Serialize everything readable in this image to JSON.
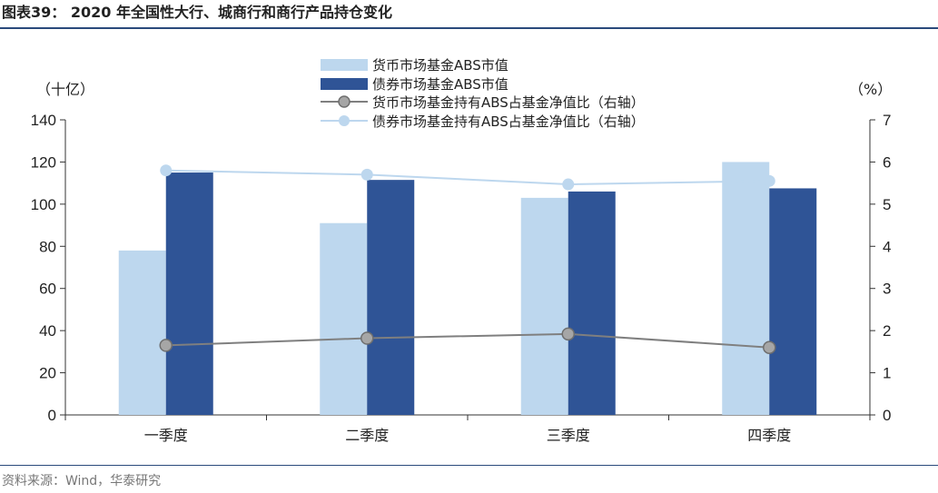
{
  "figure_title": "图表39： 2020 年全国性大行、城商行和商行产品持仓变化",
  "source": "资料来源：Wind，华泰研究",
  "colors": {
    "mmf_bar": "#bdd7ee",
    "bond_bar": "#2f5496",
    "mmf_line": "#7f7f7f",
    "mmf_marker": "#a6a6a6",
    "bond_line": "#bdd7ee",
    "rule": "#2a4a7b"
  },
  "chart_data": {
    "type": "bar",
    "categories": [
      "一季度",
      "二季度",
      "三季度",
      "四季度"
    ],
    "y_left": {
      "unit_label": "（十亿）",
      "ylim": [
        0,
        140
      ],
      "ticks": [
        "0",
        "20",
        "40",
        "60",
        "80",
        "100",
        "120",
        "140"
      ]
    },
    "y_right": {
      "unit_label": "（%）",
      "ylim": [
        0,
        7
      ],
      "ticks": [
        "0",
        "1",
        "2",
        "3",
        "4",
        "5",
        "6",
        "7"
      ]
    },
    "grid": false,
    "legend_position": "top-center",
    "series": [
      {
        "name": "货币市场基金ABS市值",
        "type": "bar",
        "axis": "left",
        "values": [
          78,
          91,
          103,
          120
        ]
      },
      {
        "name": "债券市场基金ABS市值",
        "type": "bar",
        "axis": "left",
        "values": [
          115,
          111.5,
          106,
          107.5
        ]
      },
      {
        "name": "货币市场基金持有ABS占基金净值比（右轴）",
        "type": "line",
        "axis": "right",
        "values": [
          1.65,
          1.82,
          1.92,
          1.6
        ]
      },
      {
        "name": "债券市场基金持有ABS占基金净值比（右轴）",
        "type": "line",
        "axis": "right",
        "values": [
          5.8,
          5.7,
          5.47,
          5.55
        ]
      }
    ]
  }
}
